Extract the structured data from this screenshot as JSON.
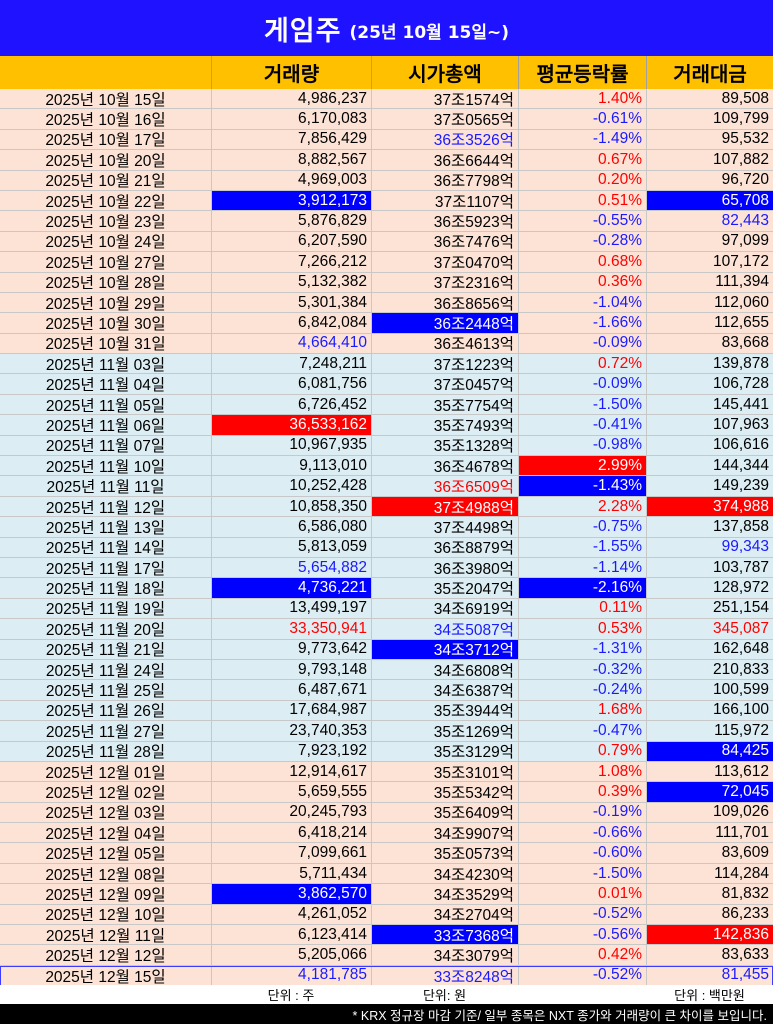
{
  "title": {
    "main": "게임주",
    "sub": "(25년 10월 15일~)"
  },
  "columns": [
    "",
    "거래량",
    "시가총액",
    "평균등락률",
    "거래대금"
  ],
  "rows": [
    {
      "date": "2025년 10월 15일",
      "vol": "4,986,237",
      "cap": "37조1574억",
      "chg": "1.40%",
      "amt": "89,508",
      "p": "oct",
      "chgStyle": "t-red"
    },
    {
      "date": "2025년 10월 16일",
      "vol": "6,170,083",
      "cap": "37조0565억",
      "chg": "-0.61%",
      "amt": "109,799",
      "p": "oct",
      "chgStyle": "t-blue"
    },
    {
      "date": "2025년 10월 17일",
      "vol": "7,856,429",
      "cap": "36조3526억",
      "chg": "-1.49%",
      "amt": "95,532",
      "p": "oct",
      "capStyle": "t-blue",
      "chgStyle": "t-blue"
    },
    {
      "date": "2025년 10월 20일",
      "vol": "8,882,567",
      "cap": "36조6644억",
      "chg": "0.67%",
      "amt": "107,882",
      "p": "oct",
      "chgStyle": "t-red"
    },
    {
      "date": "2025년 10월 21일",
      "vol": "4,969,003",
      "cap": "36조7798억",
      "chg": "0.20%",
      "amt": "96,720",
      "p": "oct",
      "chgStyle": "t-red"
    },
    {
      "date": "2025년 10월 22일",
      "vol": "3,912,173",
      "cap": "37조1107억",
      "chg": "0.51%",
      "amt": "65,708",
      "p": "oct",
      "volStyle": "bg-blue",
      "chgStyle": "t-red",
      "amtStyle": "bg-blue"
    },
    {
      "date": "2025년 10월 23일",
      "vol": "5,876,829",
      "cap": "36조5923억",
      "chg": "-0.55%",
      "amt": "82,443",
      "p": "oct",
      "chgStyle": "t-blue",
      "amtStyle": "t-blue"
    },
    {
      "date": "2025년 10월 24일",
      "vol": "6,207,590",
      "cap": "36조7476억",
      "chg": "-0.28%",
      "amt": "97,099",
      "p": "oct",
      "chgStyle": "t-blue"
    },
    {
      "date": "2025년 10월 27일",
      "vol": "7,266,212",
      "cap": "37조0470억",
      "chg": "0.68%",
      "amt": "107,172",
      "p": "oct",
      "chgStyle": "t-red"
    },
    {
      "date": "2025년 10월 28일",
      "vol": "5,132,382",
      "cap": "37조2316억",
      "chg": "0.36%",
      "amt": "111,394",
      "p": "oct",
      "chgStyle": "t-red"
    },
    {
      "date": "2025년 10월 29일",
      "vol": "5,301,384",
      "cap": "36조8656억",
      "chg": "-1.04%",
      "amt": "112,060",
      "p": "oct",
      "chgStyle": "t-blue"
    },
    {
      "date": "2025년 10월 30일",
      "vol": "6,842,084",
      "cap": "36조2448억",
      "chg": "-1.66%",
      "amt": "112,655",
      "p": "oct",
      "capStyle": "bg-blue",
      "chgStyle": "t-blue"
    },
    {
      "date": "2025년 10월 31일",
      "vol": "4,664,410",
      "cap": "36조4613억",
      "chg": "-0.09%",
      "amt": "83,668",
      "p": "oct",
      "volStyle": "t-blue",
      "chgStyle": "t-blue"
    },
    {
      "date": "2025년 11월 03일",
      "vol": "7,248,211",
      "cap": "37조1223억",
      "chg": "0.72%",
      "amt": "139,878",
      "p": "nov",
      "chgStyle": "t-red"
    },
    {
      "date": "2025년 11월 04일",
      "vol": "6,081,756",
      "cap": "37조0457억",
      "chg": "-0.09%",
      "amt": "106,728",
      "p": "nov",
      "chgStyle": "t-blue"
    },
    {
      "date": "2025년 11월 05일",
      "vol": "6,726,452",
      "cap": "35조7754억",
      "chg": "-1.50%",
      "amt": "145,441",
      "p": "nov",
      "chgStyle": "t-blue"
    },
    {
      "date": "2025년 11월 06일",
      "vol": "36,533,162",
      "cap": "35조7493억",
      "chg": "-0.41%",
      "amt": "107,963",
      "p": "nov",
      "volStyle": "bg-red",
      "chgStyle": "t-blue"
    },
    {
      "date": "2025년 11월 07일",
      "vol": "10,967,935",
      "cap": "35조1328억",
      "chg": "-0.98%",
      "amt": "106,616",
      "p": "nov",
      "chgStyle": "t-blue"
    },
    {
      "date": "2025년 11월 10일",
      "vol": "9,113,010",
      "cap": "36조4678억",
      "chg": "2.99%",
      "amt": "144,344",
      "p": "nov",
      "chgStyle": "bg-red"
    },
    {
      "date": "2025년 11월 11일",
      "vol": "10,252,428",
      "cap": "36조6509억",
      "chg": "-1.43%",
      "amt": "149,239",
      "p": "nov",
      "capStyle": "t-red",
      "chgStyle": "bg-blue"
    },
    {
      "date": "2025년 11월 12일",
      "vol": "10,858,350",
      "cap": "37조4988억",
      "chg": "2.28%",
      "amt": "374,988",
      "p": "nov",
      "capStyle": "bg-red",
      "chgStyle": "t-red",
      "amtStyle": "bg-red"
    },
    {
      "date": "2025년 11월 13일",
      "vol": "6,586,080",
      "cap": "37조4498억",
      "chg": "-0.75%",
      "amt": "137,858",
      "p": "nov",
      "chgStyle": "t-blue"
    },
    {
      "date": "2025년 11월 14일",
      "vol": "5,813,059",
      "cap": "36조8879억",
      "chg": "-1.55%",
      "amt": "99,343",
      "p": "nov",
      "chgStyle": "t-blue",
      "amtStyle": "t-blue"
    },
    {
      "date": "2025년 11월 17일",
      "vol": "5,654,882",
      "cap": "36조3980억",
      "chg": "-1.14%",
      "amt": "103,787",
      "p": "nov",
      "volStyle": "t-blue",
      "chgStyle": "t-blue"
    },
    {
      "date": "2025년 11월 18일",
      "vol": "4,736,221",
      "cap": "35조2047억",
      "chg": "-2.16%",
      "amt": "128,972",
      "p": "nov",
      "volStyle": "bg-blue",
      "chgStyle": "bg-blue"
    },
    {
      "date": "2025년 11월 19일",
      "vol": "13,499,197",
      "cap": "34조6919억",
      "chg": "0.11%",
      "amt": "251,154",
      "p": "nov",
      "chgStyle": "t-red"
    },
    {
      "date": "2025년 11월 20일",
      "vol": "33,350,941",
      "cap": "34조5087억",
      "chg": "0.53%",
      "amt": "345,087",
      "p": "nov",
      "volStyle": "t-red",
      "capStyle": "t-blue",
      "chgStyle": "t-red",
      "amtStyle": "t-red"
    },
    {
      "date": "2025년 11월 21일",
      "vol": "9,773,642",
      "cap": "34조3712억",
      "chg": "-1.31%",
      "amt": "162,648",
      "p": "nov",
      "capStyle": "bg-blue",
      "chgStyle": "t-blue"
    },
    {
      "date": "2025년 11월 24일",
      "vol": "9,793,148",
      "cap": "34조6808억",
      "chg": "-0.32%",
      "amt": "210,833",
      "p": "nov",
      "chgStyle": "t-blue"
    },
    {
      "date": "2025년 11월 25일",
      "vol": "6,487,671",
      "cap": "34조6387억",
      "chg": "-0.24%",
      "amt": "100,599",
      "p": "nov",
      "chgStyle": "t-blue"
    },
    {
      "date": "2025년 11월 26일",
      "vol": "17,684,987",
      "cap": "35조3944억",
      "chg": "1.68%",
      "amt": "166,100",
      "p": "nov",
      "chgStyle": "t-red"
    },
    {
      "date": "2025년 11월 27일",
      "vol": "23,740,353",
      "cap": "35조1269억",
      "chg": "-0.47%",
      "amt": "115,972",
      "p": "nov",
      "chgStyle": "t-blue"
    },
    {
      "date": "2025년 11월 28일",
      "vol": "7,923,192",
      "cap": "35조3129억",
      "chg": "0.79%",
      "amt": "84,425",
      "p": "nov",
      "chgStyle": "t-red",
      "amtStyle": "bg-blue"
    },
    {
      "date": "2025년 12월 01일",
      "vol": "12,914,617",
      "cap": "35조3101억",
      "chg": "1.08%",
      "amt": "113,612",
      "p": "dec",
      "chgStyle": "t-red"
    },
    {
      "date": "2025년 12월 02일",
      "vol": "5,659,555",
      "cap": "35조5342억",
      "chg": "0.39%",
      "amt": "72,045",
      "p": "dec",
      "chgStyle": "t-red",
      "amtStyle": "bg-blue"
    },
    {
      "date": "2025년 12월 03일",
      "vol": "20,245,793",
      "cap": "35조6409억",
      "chg": "-0.19%",
      "amt": "109,026",
      "p": "dec",
      "chgStyle": "t-blue"
    },
    {
      "date": "2025년 12월 04일",
      "vol": "6,418,214",
      "cap": "34조9907억",
      "chg": "-0.66%",
      "amt": "111,701",
      "p": "dec",
      "chgStyle": "t-blue"
    },
    {
      "date": "2025년 12월 05일",
      "vol": "7,099,661",
      "cap": "35조0573억",
      "chg": "-0.60%",
      "amt": "83,609",
      "p": "dec",
      "chgStyle": "t-blue"
    },
    {
      "date": "2025년 12월 08일",
      "vol": "5,711,434",
      "cap": "34조4230억",
      "chg": "-1.50%",
      "amt": "114,284",
      "p": "dec",
      "chgStyle": "t-blue"
    },
    {
      "date": "2025년 12월 09일",
      "vol": "3,862,570",
      "cap": "34조3529억",
      "chg": "0.01%",
      "amt": "81,832",
      "p": "dec",
      "volStyle": "bg-blue",
      "chgStyle": "t-red"
    },
    {
      "date": "2025년 12월 10일",
      "vol": "4,261,052",
      "cap": "34조2704억",
      "chg": "-0.52%",
      "amt": "86,233",
      "p": "dec",
      "chgStyle": "t-blue"
    },
    {
      "date": "2025년 12월 11일",
      "vol": "6,123,414",
      "cap": "33조7368억",
      "chg": "-0.56%",
      "amt": "142,836",
      "p": "dec",
      "capStyle": "bg-blue",
      "chgStyle": "t-blue",
      "amtStyle": "bg-red"
    },
    {
      "date": "2025년 12월 12일",
      "vol": "5,205,066",
      "cap": "34조3079억",
      "chg": "0.42%",
      "amt": "83,633",
      "p": "dec",
      "chgStyle": "t-red"
    },
    {
      "date": "2025년 12월 15일",
      "vol": "4,181,785",
      "cap": "33조8248억",
      "chg": "-0.52%",
      "amt": "81,455",
      "p": "dec",
      "last": true,
      "volStyle": "t-blue",
      "capStyle": "t-blue",
      "chgStyle": "t-blue",
      "amtStyle": "t-blue"
    }
  ],
  "units": {
    "vol": "단위 : 주",
    "cap": "단위: 원",
    "amt": "단위 : 백만원"
  },
  "footnote": "* KRX 정규장 마감 기준/ 일부 종목은 NXT 종가와 거래량이 큰 차이를 보입니다."
}
